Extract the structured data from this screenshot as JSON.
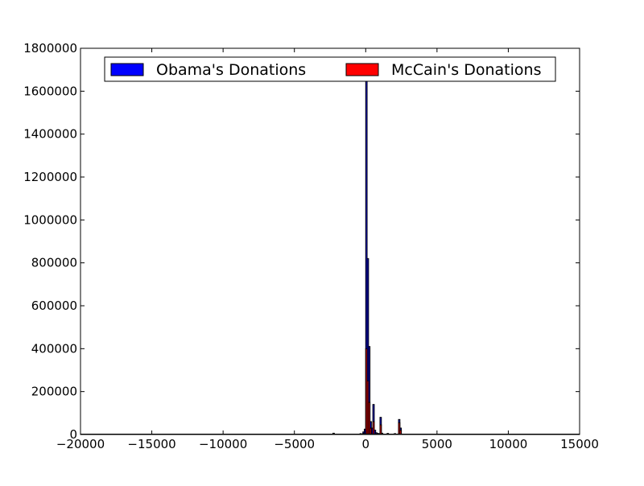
{
  "chart_data": {
    "type": "bar",
    "title": "",
    "xlabel": "",
    "ylabel": "",
    "xlim": [
      -20000,
      15000
    ],
    "ylim": [
      0,
      1800000
    ],
    "x_ticks": [
      -20000,
      -15000,
      -10000,
      -5000,
      0,
      5000,
      10000,
      15000
    ],
    "y_ticks": [
      0,
      200000,
      400000,
      600000,
      800000,
      1000000,
      1200000,
      1400000,
      1600000,
      1800000
    ],
    "x_tick_labels": [
      "−20000",
      "−15000",
      "−10000",
      "−5000",
      "0",
      "5000",
      "10000",
      "15000"
    ],
    "y_tick_labels": [
      "0",
      "200000",
      "400000",
      "600000",
      "800000",
      "1000000",
      "1200000",
      "1400000",
      "1600000",
      "1800000"
    ],
    "grid": false,
    "legend": {
      "placement": "top-center",
      "columns": 2
    },
    "bin_width": 100,
    "series": [
      {
        "name": "Obama's Donations",
        "color": "#0000ff",
        "bins": [
          {
            "x": -2300,
            "y": 6000
          },
          {
            "x": -400,
            "y": 4000
          },
          {
            "x": -200,
            "y": 12000
          },
          {
            "x": -100,
            "y": 25000
          },
          {
            "x": 0,
            "y": 1650000
          },
          {
            "x": 100,
            "y": 820000
          },
          {
            "x": 200,
            "y": 410000
          },
          {
            "x": 300,
            "y": 60000
          },
          {
            "x": 400,
            "y": 30000
          },
          {
            "x": 500,
            "y": 140000
          },
          {
            "x": 600,
            "y": 20000
          },
          {
            "x": 700,
            "y": 8000
          },
          {
            "x": 800,
            "y": 5000
          },
          {
            "x": 900,
            "y": 4000
          },
          {
            "x": 1000,
            "y": 80000
          },
          {
            "x": 1100,
            "y": 6000
          },
          {
            "x": 1500,
            "y": 5000
          },
          {
            "x": 2000,
            "y": 4000
          },
          {
            "x": 2300,
            "y": 70000
          },
          {
            "x": 2400,
            "y": 30000
          }
        ]
      },
      {
        "name": "McCain's Donations",
        "color": "#ff0000",
        "bins": [
          {
            "x": -2300,
            "y": 3000
          },
          {
            "x": -200,
            "y": 5000
          },
          {
            "x": 0,
            "y": 400000
          },
          {
            "x": 100,
            "y": 250000
          },
          {
            "x": 200,
            "y": 150000
          },
          {
            "x": 300,
            "y": 30000
          },
          {
            "x": 500,
            "y": 60000
          },
          {
            "x": 1000,
            "y": 45000
          },
          {
            "x": 2300,
            "y": 55000
          },
          {
            "x": 2400,
            "y": 20000
          }
        ]
      }
    ]
  }
}
